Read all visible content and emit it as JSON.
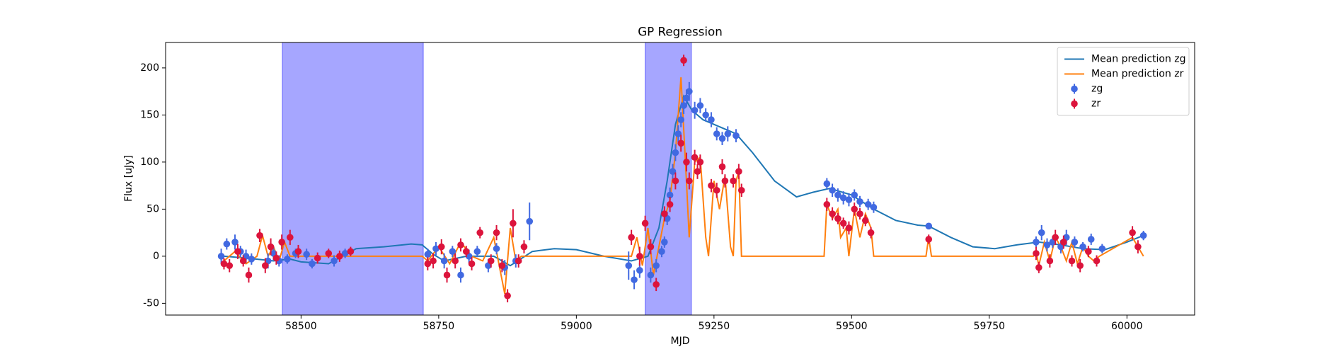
{
  "chart_data": {
    "type": "errorbar",
    "title": "GP Regression",
    "xlabel": "MJD",
    "ylabel": "Flux [uJy]",
    "xlim": [
      58254,
      60123
    ],
    "ylim": [
      -62.5,
      227
    ],
    "xticks": [
      58500,
      58750,
      59000,
      59250,
      59500,
      59750,
      60000
    ],
    "yticks": [
      -50,
      0,
      50,
      100,
      150,
      200
    ],
    "legend": "upper right",
    "spans": [
      [
        58466,
        58722
      ],
      [
        59125,
        59209
      ]
    ],
    "span_color": "#0000ff",
    "series": [
      {
        "name": "Mean prediction zg",
        "kind": "line",
        "color": "#1f77b4",
        "x": [
          58360,
          58400,
          58450,
          58480,
          58500,
          58550,
          58600,
          58650,
          58700,
          58720,
          58740,
          58760,
          58800,
          58850,
          58880,
          58920,
          58960,
          59000,
          59050,
          59100,
          59130,
          59150,
          59165,
          59180,
          59195,
          59210,
          59230,
          59250,
          59290,
          59320,
          59360,
          59400,
          59430,
          59460,
          59500,
          59540,
          59580,
          59620,
          59640,
          59680,
          59720,
          59760,
          59800,
          59840,
          59880,
          59920,
          59960,
          60000,
          60030
        ],
        "values": [
          0,
          -2,
          -5,
          -3,
          -6,
          -8,
          8,
          10,
          13,
          12,
          2,
          -5,
          0,
          0,
          -10,
          5,
          8,
          7,
          0,
          -5,
          0,
          30,
          80,
          140,
          170,
          155,
          145,
          140,
          130,
          110,
          80,
          63,
          68,
          72,
          65,
          50,
          38,
          33,
          32,
          20,
          10,
          8,
          12,
          15,
          12,
          8,
          7,
          15,
          22
        ]
      },
      {
        "name": "Mean prediction zr",
        "kind": "line",
        "color": "#ff7f0e",
        "x": [
          58360,
          58380,
          58400,
          58420,
          58430,
          58440,
          58450,
          58460,
          58470,
          58480,
          58500,
          58720,
          58730,
          58750,
          58770,
          58790,
          58810,
          58830,
          58850,
          58860,
          58870,
          58880,
          58890,
          58900,
          59100,
          59110,
          59120,
          59130,
          59140,
          59150,
          59160,
          59170,
          59180,
          59190,
          59200,
          59205,
          59215,
          59225,
          59235,
          59240,
          59250,
          59260,
          59270,
          59280,
          59285,
          59290,
          59295,
          59300,
          59450,
          59455,
          59465,
          59475,
          59480,
          59490,
          59495,
          59505,
          59515,
          59525,
          59535,
          59540,
          59635,
          59640,
          59645,
          59830,
          59835,
          59840,
          59850,
          59860,
          59870,
          59880,
          59890,
          59900,
          59910,
          59920,
          59930,
          59940,
          59950,
          60010,
          60020,
          60030
        ],
        "values": [
          -5,
          5,
          -8,
          0,
          22,
          0,
          10,
          -5,
          15,
          0,
          0,
          0,
          -5,
          10,
          -8,
          15,
          0,
          -5,
          20,
          -10,
          -40,
          30,
          -5,
          0,
          0,
          20,
          -10,
          30,
          -20,
          10,
          40,
          60,
          110,
          190,
          80,
          20,
          100,
          105,
          20,
          0,
          80,
          50,
          85,
          10,
          0,
          80,
          90,
          0,
          0,
          55,
          40,
          50,
          20,
          30,
          0,
          50,
          20,
          45,
          30,
          0,
          0,
          20,
          0,
          0,
          5,
          -10,
          15,
          -5,
          20,
          10,
          -5,
          15,
          -8,
          10,
          0,
          -5,
          0,
          20,
          10,
          0
        ]
      },
      {
        "name": "zg",
        "kind": "points",
        "color": "#4169e1",
        "x": [
          58355,
          58365,
          58380,
          58390,
          58400,
          58410,
          58440,
          58450,
          58460,
          58475,
          58490,
          58510,
          58520,
          58560,
          58580,
          58730,
          58745,
          58760,
          58775,
          58790,
          58805,
          58820,
          58840,
          58855,
          58870,
          58890,
          58915,
          59095,
          59105,
          59115,
          59135,
          59145,
          59155,
          59160,
          59165,
          59170,
          59175,
          59180,
          59185,
          59190,
          59195,
          59200,
          59205,
          59215,
          59225,
          59235,
          59245,
          59255,
          59265,
          59275,
          59290,
          59455,
          59465,
          59475,
          59485,
          59495,
          59505,
          59515,
          59530,
          59540,
          59640,
          59835,
          59845,
          59855,
          59865,
          59880,
          59890,
          59905,
          59920,
          59935,
          59955,
          60030
        ],
        "values": [
          0,
          13,
          15,
          5,
          0,
          -3,
          -5,
          3,
          -5,
          -3,
          3,
          2,
          -8,
          -5,
          3,
          2,
          8,
          -5,
          5,
          -20,
          0,
          5,
          -10,
          8,
          -12,
          -5,
          37,
          -10,
          -25,
          -15,
          -20,
          -10,
          5,
          15,
          40,
          65,
          90,
          110,
          130,
          145,
          160,
          168,
          175,
          155,
          160,
          150,
          145,
          130,
          125,
          130,
          128,
          77,
          70,
          65,
          62,
          60,
          65,
          58,
          55,
          52,
          32,
          15,
          25,
          12,
          15,
          10,
          20,
          15,
          10,
          18,
          8,
          22
        ],
        "errors": [
          8,
          6,
          8,
          6,
          7,
          6,
          8,
          7,
          6,
          5,
          5,
          6,
          5,
          6,
          5,
          6,
          7,
          8,
          6,
          8,
          7,
          6,
          7,
          6,
          8,
          7,
          20,
          15,
          10,
          8,
          8,
          7,
          6,
          6,
          7,
          8,
          8,
          9,
          9,
          8,
          9,
          9,
          10,
          9,
          8,
          7,
          8,
          7,
          7,
          8,
          7,
          6,
          7,
          7,
          7,
          7,
          6,
          6,
          6,
          6,
          3,
          6,
          8,
          7,
          6,
          7,
          8,
          6,
          5,
          6,
          5,
          5
        ]
      },
      {
        "name": "zr",
        "kind": "points",
        "color": "#dc143c",
        "x": [
          58360,
          58370,
          58385,
          58395,
          58405,
          58425,
          58435,
          58445,
          58455,
          58465,
          58480,
          58495,
          58530,
          58550,
          58570,
          58590,
          58730,
          58740,
          58755,
          58765,
          58780,
          58790,
          58800,
          58810,
          58825,
          58845,
          58855,
          58865,
          58875,
          58885,
          58895,
          58905,
          59100,
          59115,
          59125,
          59135,
          59145,
          59160,
          59170,
          59180,
          59190,
          59195,
          59200,
          59205,
          59215,
          59220,
          59225,
          59245,
          59255,
          59265,
          59270,
          59285,
          59295,
          59300,
          59455,
          59465,
          59475,
          59485,
          59495,
          59505,
          59515,
          59525,
          59535,
          59640,
          59835,
          59840,
          59860,
          59870,
          59885,
          59900,
          59915,
          59930,
          59945,
          60010,
          60020
        ],
        "values": [
          -8,
          -10,
          5,
          -5,
          -20,
          22,
          -10,
          10,
          -2,
          15,
          20,
          5,
          -2,
          3,
          0,
          5,
          -8,
          -5,
          10,
          -20,
          -5,
          12,
          5,
          -8,
          25,
          -5,
          25,
          -10,
          -42,
          35,
          -5,
          10,
          20,
          0,
          35,
          10,
          -30,
          45,
          55,
          80,
          120,
          208,
          100,
          80,
          105,
          90,
          100,
          75,
          70,
          95,
          80,
          80,
          90,
          70,
          55,
          45,
          40,
          35,
          30,
          50,
          45,
          38,
          25,
          18,
          3,
          -12,
          -5,
          20,
          15,
          -5,
          -10,
          5,
          -5,
          25,
          10
        ],
        "errors": [
          6,
          7,
          8,
          6,
          8,
          7,
          8,
          9,
          7,
          8,
          8,
          7,
          6,
          5,
          6,
          5,
          7,
          8,
          8,
          8,
          8,
          7,
          6,
          7,
          6,
          7,
          8,
          7,
          7,
          15,
          7,
          7,
          8,
          10,
          8,
          8,
          7,
          8,
          8,
          9,
          9,
          6,
          10,
          9,
          8,
          8,
          8,
          7,
          8,
          8,
          7,
          7,
          8,
          7,
          7,
          7,
          6,
          6,
          7,
          7,
          6,
          6,
          6,
          5,
          7,
          6,
          7,
          8,
          7,
          6,
          7,
          6,
          6,
          7,
          7
        ]
      }
    ]
  }
}
